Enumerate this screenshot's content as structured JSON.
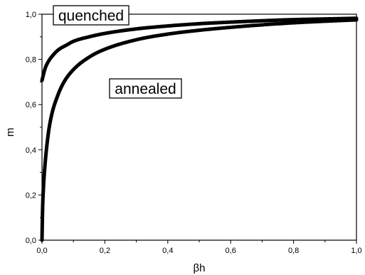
{
  "chart_data": {
    "type": "line",
    "title": "",
    "xlabel": "βh",
    "ylabel": "m",
    "xlim": [
      0.0,
      1.0
    ],
    "ylim": [
      0.0,
      1.0
    ],
    "grid": false,
    "legend": "none",
    "x_ticks": [
      "0,0",
      "0,2",
      "0,4",
      "0,6",
      "0,8",
      "1,0"
    ],
    "y_ticks": [
      "0,0",
      "0,2",
      "0,4",
      "0,6",
      "0,8",
      "1,0"
    ],
    "annotations": [
      "quenched",
      "annealed"
    ],
    "line_color": "#000000",
    "series": [
      {
        "x": [
          0.0,
          0.01,
          0.02,
          0.03,
          0.05,
          0.08,
          0.1,
          0.15,
          0.2,
          0.3,
          0.4,
          0.5,
          0.6,
          0.7,
          0.8,
          0.9,
          1.0
        ],
        "y": [
          0.707,
          0.76,
          0.79,
          0.81,
          0.84,
          0.865,
          0.88,
          0.9,
          0.915,
          0.935,
          0.948,
          0.958,
          0.965,
          0.971,
          0.976,
          0.979,
          0.982
        ]
      },
      {
        "x": [
          0.0,
          0.002,
          0.005,
          0.01,
          0.02,
          0.03,
          0.05,
          0.07,
          0.1,
          0.15,
          0.2,
          0.3,
          0.4,
          0.5,
          0.6,
          0.7,
          0.8,
          0.9,
          1.0
        ],
        "y": [
          0.0,
          0.14,
          0.24,
          0.34,
          0.47,
          0.55,
          0.64,
          0.7,
          0.755,
          0.81,
          0.845,
          0.887,
          0.912,
          0.929,
          0.942,
          0.953,
          0.962,
          0.969,
          0.975
        ]
      }
    ]
  }
}
